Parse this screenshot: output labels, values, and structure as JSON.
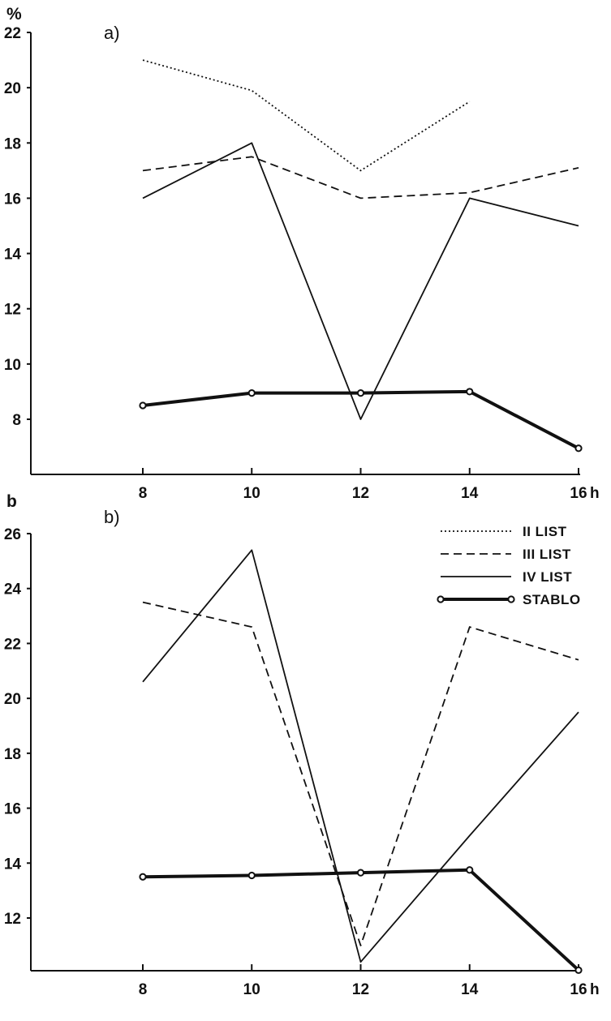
{
  "chart_data": [
    {
      "type": "line",
      "panel_label": "a)",
      "unit_label": "%",
      "x_unit": "h",
      "x": [
        8,
        10,
        12,
        14,
        16
      ],
      "x_tick_labels": [
        "8",
        "10",
        "12",
        "14",
        "16"
      ],
      "y_ticks": [
        8,
        10,
        12,
        14,
        16,
        18,
        20,
        22
      ],
      "ylim": [
        6,
        22
      ],
      "xlim": [
        6,
        16
      ],
      "series": [
        {
          "name": "II LIST",
          "style": "dotted",
          "values": [
            21.0,
            19.9,
            17.0,
            19.5,
            null
          ]
        },
        {
          "name": "III LIST",
          "style": "dashed",
          "values": [
            17.0,
            17.5,
            16.0,
            16.2,
            17.1
          ]
        },
        {
          "name": "IV LIST",
          "style": "solid",
          "values": [
            16.0,
            18.0,
            8.0,
            16.0,
            15.0
          ]
        },
        {
          "name": "STABLO",
          "style": "thick-circle",
          "values": [
            8.5,
            8.95,
            8.95,
            9.0,
            6.95
          ]
        }
      ]
    },
    {
      "type": "line",
      "panel_label": "b)",
      "unit_label": "b",
      "x_unit": "h",
      "x": [
        8,
        10,
        12,
        14,
        16
      ],
      "x_tick_labels": [
        "8",
        "10",
        "12",
        "14",
        "16"
      ],
      "y_ticks": [
        12,
        14,
        16,
        18,
        20,
        22,
        24,
        26
      ],
      "ylim": [
        10,
        26
      ],
      "xlim": [
        6,
        16
      ],
      "series": [
        {
          "name": "III LIST",
          "style": "dashed",
          "values": [
            23.5,
            22.6,
            11.0,
            22.6,
            21.4
          ]
        },
        {
          "name": "IV LIST",
          "style": "solid",
          "values": [
            20.6,
            25.4,
            10.4,
            15.0,
            19.5
          ]
        },
        {
          "name": "STABLO",
          "style": "thick-circle",
          "values": [
            13.5,
            13.55,
            13.65,
            13.75,
            10.1
          ]
        }
      ]
    }
  ],
  "legend": {
    "position": "top-right of panel b",
    "items": [
      {
        "label": "II LIST",
        "style": "dotted"
      },
      {
        "label": "III LIST",
        "style": "dashed"
      },
      {
        "label": "IV LIST",
        "style": "solid"
      },
      {
        "label": "STABLO",
        "style": "thick-circle"
      }
    ]
  },
  "colors": {
    "ink": "#111111",
    "background": "#ffffff"
  }
}
